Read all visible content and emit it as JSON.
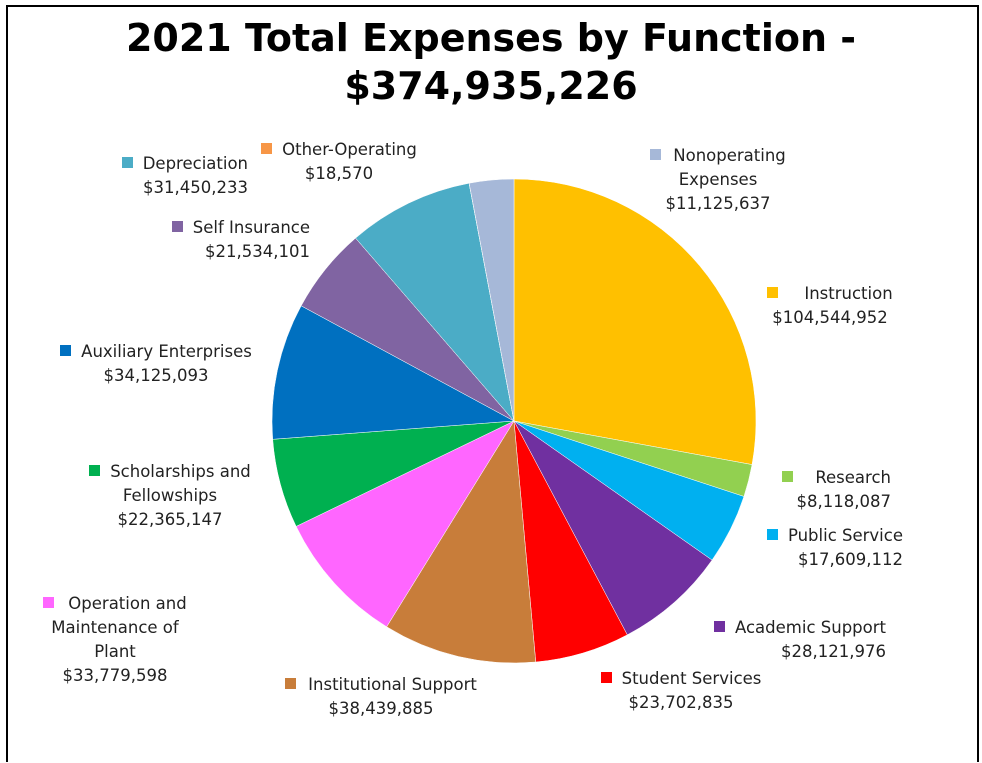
{
  "chart_data": {
    "type": "pie",
    "title": "2021 Total Expenses by Function -",
    "title_total": "$374,935,226",
    "start": "12 o'clock, clockwise",
    "slices": [
      {
        "name": "Instruction",
        "amount": "$104,544,952",
        "value": 104544952,
        "color": "#FFC000"
      },
      {
        "name": "Research",
        "amount": "$8,118,087",
        "value": 8118087,
        "color": "#92D050"
      },
      {
        "name": "Public Service",
        "amount": "$17,609,112",
        "value": 17609112,
        "color": "#00B0F0"
      },
      {
        "name": "Academic Support",
        "amount": "$28,121,976",
        "value": 28121976,
        "color": "#7030A0"
      },
      {
        "name": "Student Services",
        "amount": "$23,702,835",
        "value": 23702835,
        "color": "#FF0000"
      },
      {
        "name": "Institutional Support",
        "amount": "$38,439,885",
        "value": 38439885,
        "color": "#C87D3A"
      },
      {
        "name": "Operation and Maintenance of Plant",
        "amount": "$33,779,598",
        "value": 33779598,
        "color": "#FF66FF"
      },
      {
        "name": "Scholarships and Fellowships",
        "amount": "$22,365,147",
        "value": 22365147,
        "color": "#00B050"
      },
      {
        "name": "Auxiliary Enterprises",
        "amount": "$34,125,093",
        "value": 34125093,
        "color": "#0070C0"
      },
      {
        "name": "Self Insurance",
        "amount": "$21,534,101",
        "value": 21534101,
        "color": "#8064A2"
      },
      {
        "name": "Depreciation",
        "amount": "$31,450,233",
        "value": 31450233,
        "color": "#4BACC6"
      },
      {
        "name": "Other-Operating",
        "amount": "$18,570",
        "value": 18570,
        "color": "#F79646"
      },
      {
        "name": "Nonoperating Expenses",
        "amount": "$11,125,637",
        "value": 11125637,
        "color": "#A6B8D8"
      }
    ]
  },
  "labels": {
    "instruction": {
      "l1": "Instruction",
      "l2": "$104,544,952"
    },
    "research": {
      "l1": "Research",
      "l2": "$8,118,087"
    },
    "public_service": {
      "l1": "Public Service",
      "l2": "$17,609,112"
    },
    "academic_support": {
      "l1": "Academic Support",
      "l2": "$28,121,976"
    },
    "student_services": {
      "l1": "Student Services",
      "l2": "$23,702,835"
    },
    "institutional_support": {
      "l1": "Institutional Support",
      "l2": "$38,439,885"
    },
    "operation": {
      "l1": "Operation and",
      "l2": "Maintenance of",
      "l3": "Plant",
      "l4": "$33,779,598"
    },
    "scholarships": {
      "l1": "Scholarships and",
      "l2": "Fellowships",
      "l3": "$22,365,147"
    },
    "auxiliary": {
      "l1": "Auxiliary Enterprises",
      "l2": "$34,125,093"
    },
    "self_insurance": {
      "l1": "Self Insurance",
      "l2": "$21,534,101"
    },
    "depreciation": {
      "l1": "Depreciation",
      "l2": "$31,450,233"
    },
    "other_operating": {
      "l1": "Other-Operating",
      "l2": "$18,570"
    },
    "nonoperating": {
      "l1": "Nonoperating",
      "l2": "Expenses",
      "l3": "$11,125,637"
    }
  }
}
